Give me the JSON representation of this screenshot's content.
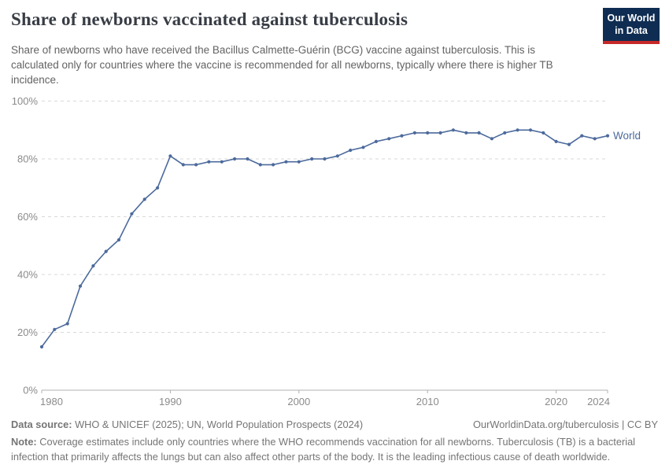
{
  "header": {
    "title": "Share of newborns vaccinated against tuberculosis",
    "subtitle": "Share of newborns who have received the Bacillus Calmette-Guérin (BCG) vaccine against tuberculosis. This is calculated only for countries where the vaccine is recommended for all newborns, typically where there is higher TB incidence.",
    "logo": {
      "line1": "Our World",
      "line2": "in Data"
    }
  },
  "chart_data": {
    "type": "line",
    "title": "Share of newborns vaccinated against tuberculosis",
    "xlabel": "",
    "ylabel": "",
    "ylim": [
      0,
      100
    ],
    "xlim": [
      1980,
      2024
    ],
    "grid": "horizontal-dashed",
    "legend_position": "end-of-line-label",
    "x": [
      1980,
      1981,
      1982,
      1983,
      1984,
      1985,
      1986,
      1987,
      1988,
      1989,
      1990,
      1991,
      1992,
      1993,
      1994,
      1995,
      1996,
      1997,
      1998,
      1999,
      2000,
      2001,
      2002,
      2003,
      2004,
      2005,
      2006,
      2007,
      2008,
      2009,
      2010,
      2011,
      2012,
      2013,
      2014,
      2015,
      2016,
      2017,
      2018,
      2019,
      2020,
      2021,
      2022,
      2023,
      2024
    ],
    "series": [
      {
        "name": "World",
        "color": "#4c6a9c",
        "values": [
          15,
          21,
          23,
          36,
          43,
          48,
          52,
          61,
          66,
          70,
          81,
          78,
          78,
          79,
          79,
          80,
          80,
          78,
          78,
          79,
          79,
          80,
          80,
          81,
          83,
          84,
          86,
          87,
          88,
          89,
          89,
          89,
          90,
          89,
          89,
          87,
          89,
          90,
          90,
          89,
          86,
          85,
          88,
          87,
          88
        ]
      }
    ],
    "y_ticks": [
      {
        "value": 0,
        "label": "0%"
      },
      {
        "value": 20,
        "label": "20%"
      },
      {
        "value": 40,
        "label": "40%"
      },
      {
        "value": 60,
        "label": "60%"
      },
      {
        "value": 80,
        "label": "80%"
      },
      {
        "value": 100,
        "label": "100%"
      }
    ],
    "x_ticks": [
      {
        "value": 1980,
        "label": "1980"
      },
      {
        "value": 1990,
        "label": "1990"
      },
      {
        "value": 2000,
        "label": "2000"
      },
      {
        "value": 2010,
        "label": "2010"
      },
      {
        "value": 2020,
        "label": "2020"
      },
      {
        "value": 2024,
        "label": "2024"
      }
    ]
  },
  "footer": {
    "datasource_label": "Data source:",
    "datasource_text": " WHO & UNICEF (2025); UN, World Population Prospects (2024)",
    "link": "OurWorldinData.org/tuberculosis | CC BY",
    "note_label": "Note:",
    "note_text": " Coverage estimates include only countries where the WHO recommends vaccination for all newborns. Tuberculosis (TB) is a bacterial infection that primarily affects the lungs but can also affect other parts of the body. It is the leading infectious cause of death worldwide."
  },
  "colors": {
    "line": "#4c6a9c",
    "logo_navy": "#0f2d52",
    "logo_red": "#c62828",
    "grid": "#d9d9d9",
    "axis": "#b0b0b0",
    "tick_text": "#8b8b8b"
  }
}
